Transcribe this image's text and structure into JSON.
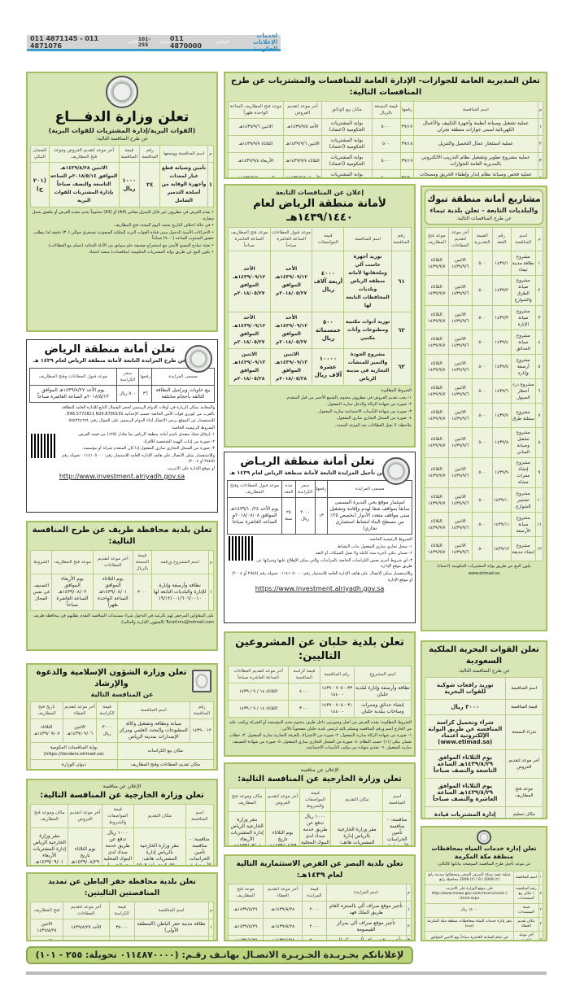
{
  "header": {
    "brand_line1": "لخدمات",
    "brand_line2": "الإعلانات الحكومية",
    "label_contact": "للتواصل",
    "phone_main": "011 4870000",
    "label_ext": "تحويلة",
    "ext": "101-255",
    "label_fax": "فاكس",
    "fax": "011 4871145 - 011 4871076"
  },
  "ads": {
    "defense": {
      "title": "تعلن وزارة الدفـــاع",
      "subtitle": "(القوات البرية/إدارة المشتريات للقوات البرية)",
      "intro": "عن طرح المنافسة التالية:",
      "headers": [
        "م",
        "اسم المنافسة ووصفها",
        "رقم المنافسة",
        "قيمة المنافسة",
        "آخر موعد لتقديم العروض وموعد فتح المظاريف",
        "الضمان البنكي"
      ],
      "rows": [
        [
          "١",
          "تأمين وصيانة قطع غيار لمعدات وأجهزة الوقاية من أسلحة التدمير الشامل",
          "٢٤",
          "١٠٠٠ ريال",
          "الاثنين ١٤٣٩/٨/٢٨هـ الموافق ٢٠١٨/٥/١٤م الساعة التاسعة والنصف صباحاً بإدارة المشتريات للقوات البرية",
          "(٢٠١ ج)"
        ]
      ],
      "notes": [
        "• يقدم العرض في مظروف غير قابل للتمزق مقاس (A4) أو (A3) مختوماً بختم مقدم العرض أو ملصق يحمل شعاره.",
        "• في حالة اختلاف التاريخ يعتمد اليوم المحدد فتح المظاريف.",
        "• الاجراءات الأمنية الدخول مبنى قيادة القوات البرية الملكية السعودية تستغرق حوالي (٣٠) دقيقة لذا يتطلب حضور المندوب الساعة (٩:٠٠) صباحاً",
        "• تعبئة نماذج المسح الأمني مع استخراج صحيفة خلو سوابق من الأدلة الجنائية (تسلم مع العطاءات).",
        "• يكون البيع عن طريق بوابة المشتريات الحكومية (منافسات) منصة اعتماد."
      ]
    },
    "riyadh_auction": {
      "title": "تعلن أمانة منطقة الرياض",
      "subtitle": "عن طرح المزايدة التابعة لأمانة منطقة الرياض لعام ١٤٣٩ هـ",
      "headers": [
        "مسمى المزايدة",
        "رقمها",
        "سعر الكراسة",
        "موعد قبول العطاءات وفتح المظاريف"
      ],
      "rows": [
        [
          "بيع حاويات وبراميل النظافة التالفة بأحجام مختلفة",
          "٣٦",
          "٥٠٠ ريال",
          "يوم الأحد ١٤٣٩/٨/٢٧هـ الموافق ٢٠١٨/٥/١٣م الساعة العاشرة صباحاً"
        ]
      ],
      "notes": [
        "والمعاينة بمكان الزيارة في أوقات الدوام الرسمي لحجز الشمال التابع للإدارة العامة للنظافة بالقرب من كوبري قوات الأمن الخاصة حسب الإحداثية E46.5772821 N24.8790191 .",
        "للاستفسار عن الموقع يرجى الاتصال أثناء الدوام الرسمي على الجوال رقم: ٠٥٥٤٢٢٤٦٢٨",
        "الشروط الرئيسية الخاصة:",
        "١- إرفاق شيك مصدق باسم أمانة منطقة الرياض بما يعادل (٢٥٪) من قيمة العرض.",
        "٢- صورة من إثبات الهوية الشخصية للأفراد.",
        "٣- صورة من السجل التجاري ساري المفعول إذا كان المتقدم شركة أو مؤسسة.",
        "وللاستفسار يمكن الاتصال على هاتف الإدارة العامة للاستثمار رقم: ٠١١٤١٠٥٠٠٠ تحويلة رقم (٢٥٤٥ أو ٢٠٠٤)",
        "أو موقع الإدارة على الانترنت"
      ],
      "url": "http://www.investment.alriyadh.gov.sa"
    },
    "turaif": {
      "title": "تعلن بلدية محافظة طريف عن طرح المنافسة التالية:",
      "headers": [
        "م",
        "اسم المشروع ورقمه",
        "قيمة النسخة بالريال",
        "آخر موعد لتقديم العطاءات",
        "موعد فتح المظاريف",
        "الشروط"
      ],
      "rows": [
        [
          "١",
          "نظافة وأرصفة وإنارة للإنارة والبلديات التابعة لها ١٩/١٢/٠٠١/٦٠٦/٠٠١٠",
          "٣٠٠٠",
          "يوم الثلاثاء الموافق ١٤٣٩/٠٨/٠١هـ الساعة الواحدة ظهراً",
          "يوم الأربعاء الموافق ١٤٣٩/٠٨/٠٢هـ الساعة العاشرة صباحاً",
          "التصنيف في نفس المجال"
        ]
      ],
      "notes": [
        "على المقاولين المرخص لهم بالرغبة في الدخول شراء مستندات المنافسة التقدم بطلبهم في محافظة طريف Turaif.mu@hotmail.com (الشؤون الإدارية والمالية)."
      ]
    },
    "islamic": {
      "title": "تعلن وزارة الشؤون الإسلامية والدعوة والإرشاد",
      "subtitle": "عن المنافسة التالية",
      "headers": [
        "رقم المنافسة",
        "اسم المنافسة",
        "قيمة الكراسة",
        "آخر موعد لتقديم العطاء",
        "تاريخ فتح المظاريف"
      ],
      "rows": [
        [
          "١٤٣٩٠٠١٢",
          "صيانة ونظافة وتشغيل وكالة المطبوعات والبحث العلمي ومركز الإصدارات بمدينة الرياض",
          "٣٠٠٠ ريال",
          "الاثنين ١٤٣٩/٠٩/٠٦هـ",
          "الثلاثاء ١٤٣٩/٠٩/٠٧هـ"
        ]
      ],
      "extra": [
        [
          "مكان بيع الكراسات",
          "بوابة المنافسات الحكومية (https://tenders.etimad.sa)"
        ],
        [
          "مكان تقديم العطاءات وفتح المظاريف",
          "ديوان الوزارة"
        ]
      ]
    },
    "foreign1": {
      "pre": "الإعلان عن منافسة",
      "title": "تعلن وزارة الخارجية عن المنافسة التالية:",
      "headers": [
        "اسم المنافسة",
        "مكان التقديم",
        "قيمة المواصفات والشروط",
        "آخر موعد لتقديم العروض",
        "مكان وموعد فتح المظاريف"
      ],
      "rows": [
        [
          "منافسة: - منافسة تأمين الحراسات الأمنية لمقر فرع الوزارة بالمنطقة (مكة - جدة)",
          "مقر وزارة الخارجية بالرياض إدارة المشتريات هاتف: ٤٠٥٥٠٠٠ تحويلة: ٤٥٠٢ الموقع الالكتروني www.mofa.gov.sa",
          "١٠٠٠ ريال تدفع عن طريق خدمة سداد لدى البنوك المحلية بعد الحصول على الفاتورة من بوابة المشتريات الحكومية",
          "يوم الثلاثاء تاريخ ١٤٣٩/٠٨/٢٩هـ الموافق ٢٠١٨/٠٥/١٥م",
          "مقر وزارة الخارجية الرياض إدارة المشتريات الأربعاء ١٤٣٩/٠٩/٠١هـ الموافق ٢٠١٨/٠٥/١٦م الساعة ١٠:٠٠ صباحاً"
        ]
      ]
    },
    "hafr": {
      "title": "تعلن بلدية محافظة حفر الباطن عن تمديد المناقصتين التاليتين:",
      "headers": [
        "م",
        "اسم المناقصة",
        "قيمة الكراسة",
        "آخر موعد لتقديم العطاءات",
        "فتح المظاريف"
      ],
      "rows": [
        [
          "١",
          "نظافة مدينة حفر الباطن (المنطقة الأولى)",
          "٣٥٠٠٠",
          "الأحد ١٤٣٩/٨/٢٧",
          "الاثنين ١٤٣٩/٨/٢٨"
        ],
        [
          "٢",
          "إعادة تأهيل المعدات والسيارات",
          "١٥٠٠",
          "الأحد ١٤٣٩/٨/٢٧",
          "الاثنين ١٤٣٩/٨/٢٨"
        ]
      ]
    },
    "passports": {
      "title": "تعلن المديرية العامة للجوازات- الإدارة العامة للمنافسات والمشتريات عن طرح المنافسات التالية:",
      "headers": [
        "م",
        "اسم المنافسة",
        "رقمها",
        "قيمة النسخة بالريال",
        "مكان بيع الوثائق",
        "آخر موعد لتقديم العروض",
        "موعد فتح المظاريف الساعة الواحدة ظهراً"
      ],
      "rows": [
        [
          "١",
          "عملية تشغيل وصيانة أنظمة وأجهزة التكييف والأعمال الكهربائية لمبنى جوازات منطقة نجران",
          "٣٩/١٧",
          "٥٠٠٠",
          "بوابة المشتريات الحكومية (اعتماد)",
          "الأحد ١٤٣٩/٩/٥هـ",
          "الاثنين ١٤٣٩/٩/٦هـ"
        ],
        [
          "٢",
          "عملية استئجار عمال التحميل والتنزيل",
          "٣٩/١٨",
          "٥٠٠",
          "بوابة المشتريات الحكومية (اعتماد)",
          "الاثنين ١٤٣٩/٩/٦هـ",
          "الثلاثاء ١٤٣٩/٩/٧هـ"
        ],
        [
          "٣",
          "عملية مشروع تطوير وتشغيل نظام التدريب الالكتروني بالمديرية العامة للجوازات",
          "٣٩/١٩",
          "٥٠٠٠",
          "بوابة المشتريات الحكومية (اعتماد)",
          "الثلاثاء ١٤٣٩/٩/٧هـ",
          "الأربعاء ١٤٣٩/٩/٨هـ"
        ],
        [
          "٤",
          "عملية فحص وصيانة نظام إنذار وإطفاء الحريق ومضخات المياه بمبنى جوازات منطقة مكة المكرمة",
          "٣٩/٢٠",
          "٥٠٠٠",
          "بوابة المشتريات الحكومية (اعتماد)",
          "الأربعاء ١٤٣٩/٩/٨هـ",
          "الخميس ١٤٣٩/٩/٩هـ"
        ],
        [
          "٥",
          "عملية تشغيل وصيانة أنظمة وأجهزة التكييف والأعمال الكهربائية لمبنى جوازات منطقة المدينة المنورة",
          "٣٩/٢١",
          "٥٠٠٠",
          "بوابة المشتريات الحكومية (اعتماد)",
          "الأحد ١٤٣٩/٩/١٢هـ",
          "الاثنين ١٤٣٩/٩/١٣هـ"
        ],
        [
          "٦",
          "عملية تأمين وتوريد الأثاث المكتبية للمديرية العامة للجوازات وفروعها بمناطق المملكة ١٤٣٩/١٤٤٠هـ",
          "٣٩/٢٢",
          "٥٠٠",
          "بوابة المشتريات الحكومية (اعتماد)",
          "الاثنين ١٤٣٩/٩/١٣هـ",
          "الثلاثاء ١٤٣٩/٩/١٤هـ"
        ],
        [
          "٧",
          "عملية تأمين وتوريد المطبوعات للمديرية العامة للجوازات وفروعها بمناطق المملكة ١٤٣٩/١٤٤٠هـ",
          "٣٩/٢٣",
          "٥٠٠",
          "بوابة المشتريات الحكومية (اعتماد)",
          "الثلاثاء ١٤٣٩/٩/١٤هـ",
          "الأربعاء ١٤٣٩/٩/١٥هـ"
        ]
      ]
    },
    "riyadh_tenders": {
      "pre": "إعلان عن المنافسات التابعة",
      "title": "لأمانة منطقة الرياض لعام ١٤٣٩/١٤٤٠هـ",
      "headers": [
        "رقم المنافسة",
        "اسم المنافسة",
        "قيمة المواصفات",
        "موعد قبول العطاءات الساعة العاشرة صباحاً",
        "موعد فتح المظاريف الساعة العاشرة صباحاً"
      ],
      "rows": [
        [
          "٦١",
          "توريد أجهزة حاسب آلي وملحقاتها لأمانة منطقة الرياض وبلديات المحافظات التابعة لها",
          "٤٠٠٠ أربعة آلاف ريال",
          "الأحد ١٤٣٩/٠٩/١٢هـ الموافق ٢٠١٨/٠٥/٢٧م",
          "الأحد ١٤٣٩/٠٩/١٢هـ الموافق ٢٠١٨/٠٥/٢٧م"
        ],
        [
          "٦٢",
          "توريد أدوات مكتبية ومطبوعات وأثاث مكتبي",
          "٥٠٠ خمسمائة ريال",
          "الأحد ١٤٣٩/٠٩/١٢هـ الموافق ٢٠١٨/٠٥/٢٧م",
          "الأحد ١٤٣٩/٠٩/١٢هـ الموافق ٢٠١٨/٠٥/٢٧م"
        ],
        [
          "٦٣",
          "مشروع الجودة والتميز للمنشآت التجارية في مدينة الرياض",
          "١٠٠٠٠ عشرة آلاف ريال",
          "الاثنين ١٤٣٩/٠٩/١٣هـ الموافق ٢٠١٨/٠٥/٢٨م",
          "الاثنين ١٤٣٩/٠٩/١٣هـ الموافق ٢٠١٨/٠٥/٢٨م"
        ]
      ],
      "notes": [
        "الشروط المطلوبة:",
        "١- يجب تقديم العروض في مظروف مختوم بالشمع الأحمر من قبل المتقدم.",
        "٢- صورة من شهادة الزكاة والدخل سارية المفعول.",
        "٣- صورة من شهادة التأمينات الاجتماعية سارية المفعول.",
        "٤- صورة من السجل التجاري ساري المفعول.",
        "ملاحظة: لا تقبل العطاءات بعد الموعد المحدد."
      ]
    },
    "riyadh_postpone": {
      "title": "تعلن أمانة منطقة الريـاض",
      "subtitle": "عن تأجيل المزايدة التابعة لأمانة منطقة الرياض لعام ١٤٣٩ هـ",
      "headers": [
        "مسمى المزايدة",
        "رقمها",
        "سعر الكراسة",
        "مدة العقد",
        "موعد قبول العطاءات وفتح المظاريف"
      ],
      "rows": [
        [
          "استثمار موقع بحي النديرة المسمى سابقاً بمواقف شقا لهدم وإقامة وتشغيل مبنى مواقف متعدد الأدوار (بخصص ٢٥٪ من مسطح البناء لنشاط استثماري تجاري)",
          "١٣",
          "٢٠٠٠ ريال",
          "٢٥ سنة",
          "يوم الأحد ١٤٣٩/١٠/٢٤هـ الموافق ٢٠١٨/٠٧/٠٨م الساعة العاشرة صباحاً"
        ]
      ],
      "notes": [
        "الشروط الرئيسية الخاصة:",
        "١- سجل تجاري ساري المفعول بذات النشاط.",
        "٢- ضمان بنكي بأجرة سنة كاملة ولا تقبل الشيكات أو النقد.",
        "٣- أي شروط أخرى ضمن الكراسات الخاصة بالمزايدات والتي يمكن الإطلاع عليها وشرائها عن طريق موقع الإدارة",
        "وللاستفسار يمكن الاتصال على هاتف الإدارة العامة للاستثمار رقم: ٠١١٤١٠٥٠٠٠ تحويلة رقم (٢٥٤٥ أو ٢٠٠٤)",
        "أو موقع الإدارة"
      ],
      "url": "https://www.investment.alriyadh.gov.sa"
    },
    "halban": {
      "title": "تعلن بلدية حلبان عن المشروعين التاليين:",
      "headers": [
        "اسم المشروع",
        "رقم المنافسة",
        "قيمة كراسة المنافسة",
        "آخر موعد لتقديم العطاءات الساعة العاشرة صباحاً"
      ],
      "rows": [
        [
          "نظافة وأرصفة وإنارة لبلدية حلبان",
          "٣٣ - ٧٠٥ - ١٤٣٩ - ١٤٤٠",
          "٤٠٠٠",
          "الثلاثاء ١٤ / ٩ / ١٤٣٩"
        ],
        [
          "إنشاء حدائق وممرات وساحات ببلدية حلبان",
          "٣١ - ٧٠٥ - ١٤٣٩ - ١٤٤٠",
          "٣٠٠٠",
          "الثلاثاء ١٤ / ٩ / ١٤٣٩"
        ]
      ],
      "notes": [
        "الشروط المطلوبة: يقدم العرض من أصل وصورتين داخل ظرف مختوم بختم المؤسسة أو الشركة ويكتب عليه من الخارج اسم ورقم المنافسة ويسلم باليد لرئيس بلدية حلبان مصحوباً بالآتي:",
        "١- صورة من شهادة الزكاة سارية المفعول. ٢- صورة من الاشتراك بالغرفة التجارية سارية المفعول. ٣- خطاب ضمان بنكي (١٪) حسب النظام. ٤- صورة من السجل التجاري ساري المفعول. ٥- صورة من شهادة التصنيف سارية المفعول. ٦- تقديم شهادة من مكتب التأمينات الاجتماعية."
      ]
    },
    "foreign2": {
      "pre": "الإعلان عن منافسة",
      "title": "تعلن وزارة الخارجية عن المنافسة التالية:",
      "headers": [
        "اسم المنافسة",
        "مكان التقديم",
        "قيمة المواصفات والشروط",
        "آخر موعد لتقديم العروض",
        "مكان وموعد فتح المظاريف"
      ],
      "rows": [
        [
          "منافسة: - منافسة تأمين الحراسات الأمنية لمقر فرع الوزارة في منطقة المدينة المنورة",
          "مقر وزارة الخارجية بالرياض إدارة المشتريات هاتف: ٤٠٥٥٠٠٠ تحويلة: ٤٥٠٢ الموقع الالكتروني www.mofa.gov.sa",
          "١٠٠٠ ريال تدفع عن طريق خدمة سداد لدى البنوك المحلية بعد الحصول على الفاتورة من بوابة المشتريات الحكومية",
          "يوم الثلاثاء تاريخ ١٤٣٩/٠٨/٢٩هـ الموافق ٢٠١٨/٠٥/١٥م",
          "مقر وزارة الخارجية الرياض إدارة المشتريات الأربعاء ١٤٣٩/٠٩/٠١هـ الموافق ٢٠١٨/٠٥/١٦م الساعة ١٠:٠٠ صباحاً"
        ]
      ]
    },
    "basr": {
      "title": "تعلن بلدية البصر عن الفرص الاستثمارية التالية لعام ١٤٣٩هـ:",
      "headers": [
        "م",
        "اسم المزايدة",
        "قيمة المزايدة",
        "آخر موعد لتقديم العطاء",
        "موعد فتح المظاريف"
      ],
      "rows": [
        [
          "١",
          "تأجير موقع صراف آلي بالمنتزه العام طريق الملك فهد",
          "٢٠٠٠",
          "١٤٣٩/٨/٢٨هـ",
          "١٤٣٩/٨/٢٩هـ"
        ],
        [
          "٢",
          "تأجير موقع صراف آلي بمركز القيصومة",
          "٢٠٠٠",
          "١٤٣٩/٨/٢٨هـ",
          "١٤٣٩/٨/٢٩هـ"
        ],
        [
          "٣",
          "تأجير موقع صراف آلي بمركز البصر",
          "٢٠٠٠",
          "١٤٣٩/٨/٢٨هـ",
          "١٤٣٩/٨/٢٩هـ"
        ],
        [
          "٤",
          "تأجير منتزه البصر العام للعائلات",
          "٢٠٠٠",
          "١٤٣٩/٨/٢٨هـ",
          "١٤٣٩/٨/٢٩هـ"
        ]
      ],
      "notes": [
        "على الراغبين الدخول في هذه المزايدات مراجعة بلدية البصر قسم الاستثمار علماً بأن فتح المظاريف في بلدية البصر"
      ]
    },
    "tabuk": {
      "title": "مشاريع أمانة منطقة تبوك",
      "subtitle": "والبلديات التابعة - تعلن بلدية تيماء",
      "intro": "عن طرح المناقصات التالية:",
      "headers": [
        "م",
        "اسم المناقصة",
        "رقم العقد",
        "القيمة التقديرية",
        "آخر موعد لتقديم العطاءات",
        "موعد فتح المظاريف"
      ],
      "rows": [
        [
          "١",
          "مشروع نظافة مدينة تيماء",
          "١٤٣٩/١",
          "٥٠٠",
          "الاثنين ١٤٣٩/٩/٦",
          "الثلاثاء ١٤٣٩/٩/٧"
        ],
        [
          "٢",
          "مشروع صيانة الطرق والشوارع",
          "١٤٣٩/٢",
          "٥٠٠",
          "الاثنين ١٤٣٩/٩/٦",
          "الثلاثاء ١٤٣٩/٩/٧"
        ],
        [
          "٣",
          "مشروع صيانة الإنارة",
          "١٤٣٩/٣",
          "٥٠٠",
          "الاثنين ١٤٣٩/٩/٦",
          "الثلاثاء ١٤٣٩/٩/٧"
        ],
        [
          "٤",
          "مشروع صيانة الحدائق",
          "١٤٣٩/٤",
          "٥٠٠",
          "الاثنين ١٤٣٩/٩/٦",
          "الثلاثاء ١٤٣٩/٩/٧"
        ],
        [
          "٥",
          "مشروع أرصفة وإنارة",
          "١٤٣٩/٥",
          "٥٠٠",
          "الاثنين ١٤٣٩/٩/٦",
          "الثلاثاء ١٤٣٩/٩/٧"
        ],
        [
          "٦",
          "مشروع درء أخطار السيول",
          "١٤٣٩/٦",
          "٥٠٠",
          "الاثنين ١٤٣٩/٩/٦",
          "الثلاثاء ١٤٣٩/٩/٧"
        ],
        [
          "٧",
          "مشروع سفلتة طرق",
          "١٤٣٩/٧",
          "٥٠٠",
          "الاثنين ١٤٣٩/٩/٦",
          "الثلاثاء ١٤٣٩/٩/٧"
        ],
        [
          "٨",
          "مشروع تشغيل وصيانة المباني",
          "١٤٣٩/٨",
          "٥٠٠",
          "الاثنين ١٤٣٩/٩/٦",
          "الثلاثاء ١٤٣٩/٩/٧"
        ],
        [
          "٩",
          "مشروع إنشاء ممرات مشاة",
          "١٤٣٩/٩",
          "٥٠٠",
          "الاثنين ١٤٣٩/٩/٦",
          "الثلاثاء ١٤٣٩/٩/٧"
        ],
        [
          "١٠",
          "مشروع تشجير الشوارع",
          "١٤٣٩/١٠",
          "٥٠٠",
          "الاثنين ١٤٣٩/٩/٦",
          "الثلاثاء ١٤٣٩/٩/٧"
        ],
        [
          "١١",
          "مشروع صيانة الأرصفة",
          "١٤٣٩/١١",
          "٥٠٠",
          "الاثنين ١٤٣٩/٩/٦",
          "الثلاثاء ١٤٣٩/٩/٧"
        ],
        [
          "١٢",
          "مشروع إنشاء حديقة",
          "١٤٣٩/١٢",
          "٥٠٠",
          "الاثنين ١٤٣٩/٩/٦",
          "الثلاثاء ١٤٣٩/٩/٧"
        ]
      ],
      "notes": [
        "يكون البيع عن طريق بوابة المشتريات الحكومية (اعتماد)",
        "www.etimad.sa"
      ]
    },
    "navy": {
      "title": "تعلن القوات البحرية الملكية السعودية",
      "intro": "عن طرح المنافسة التالية:",
      "rows": [
        [
          "اسم المنافسة",
          "توريد رافعات شوكية للقوات البحرية"
        ],
        [
          "قيمة المنافسة",
          "٣٠٠٠ ريال"
        ],
        [
          "شراء النسخة",
          "شراء وتحميل كراسة المنافسة عن طريق البوابة الإلكترونية اعتماد (www.etimad.sa)"
        ],
        [
          "آخر موعد لتقديم العروض",
          "يوم الثلاثاء الموافق ١٤٣٩/٨/٢٩هـ الساعة التاسعة والنصف صباحاً"
        ],
        [
          "موعد فتح المظاريف",
          "يوم الثلاثاء الموافق ١٤٣٩/٨/٢٩هـ الساعة العاشرة والنصف صباحاً"
        ],
        [
          "مكان تسليم العروض",
          "إدارة المشتريات قيادة القوات البحرية"
        ]
      ]
    },
    "water": {
      "title": "تعلن إدارة خدمات المياه بمحافظات منطقة مكة المكرمة",
      "intro": "عن موعد تأجيل طرح المنافسة الموضحة بياناتها كالتالي:",
      "rows": [
        [
          "١",
          "اسم المنافسة",
          "عملية تنفيذ شبكة الصرف الصحي ومحطاتها بمدينة رابغ (٣) 2008 / 8 / (٣) 2008 محافظة رابغ"
        ],
        [
          "٢",
          "رقم المنافسة / مكان بيع المستندات",
          "على موقع الوزارة على الانترنت (http://www.mewa.gov.sa/en/eservices/e-tend.aspx)"
        ],
        [
          "٣",
          "قيمة المستندات",
          "١٥٠٠٠ ريال"
        ],
        [
          "٤",
          "مكان تقديم العطاء",
          "مقر إدارة خدمات المياه بمحافظات منطقة مكة المكرمة (جدة)"
        ],
        [
          "٥",
          "آخر موعد لتقديم العطاءات",
          "في تمام الساعة العاشرة صباحاً يوم الاثنين الموافق ١٤٣٩/١٠/١٥هـ"
        ]
      ]
    }
  },
  "footer": {
    "text": "لإعلاناتكم بجـريـدة الجـزيـرة الاتصـال بهاتـف رقـم: (٠١١٤٨٧٠٠٠٠ تحويلة: ٢٥٥ - ١٠١)"
  },
  "colors": {
    "ad_bg": "#d8e5b5",
    "ad_border": "#a3bf62",
    "header_accent": "#3d9ccc"
  }
}
